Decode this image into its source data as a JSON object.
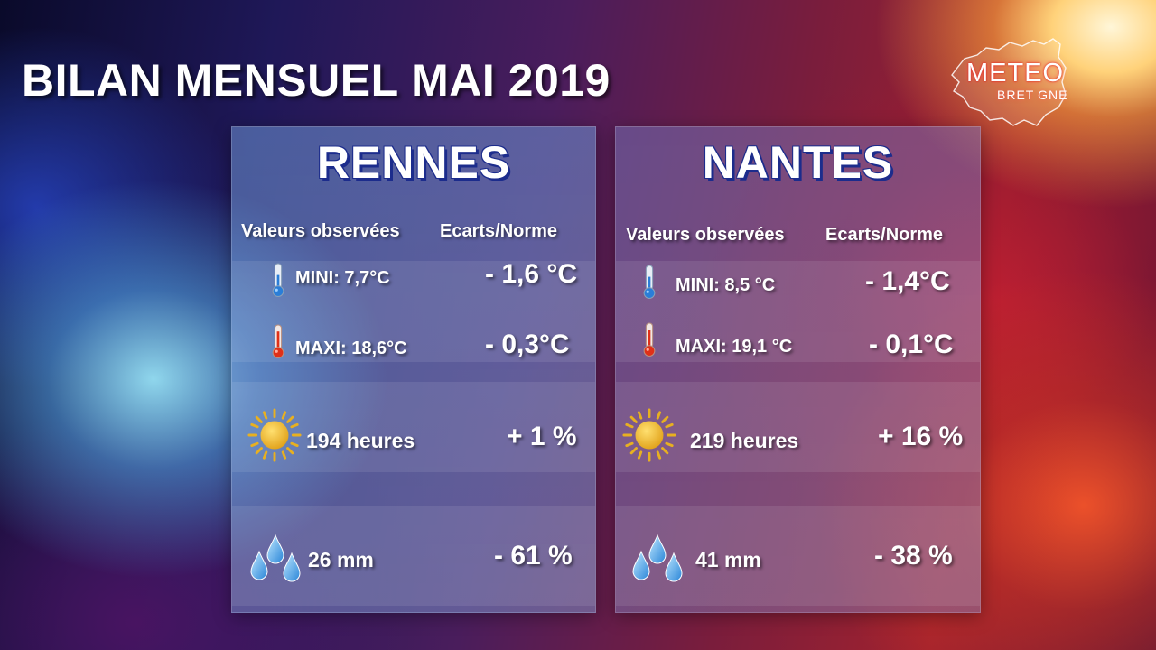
{
  "title": "BILAN MENSUEL MAI 2019",
  "logo": {
    "line1": "METEO",
    "line2": "BRET GNE"
  },
  "headers": {
    "observed": "Valeurs observées",
    "deviation": "Ecarts/Norme"
  },
  "cities": [
    {
      "name": "RENNES",
      "mini_label": "MINI: 7,7°C",
      "mini_deviation": "- 1,6 °C",
      "maxi_label": "MAXI: 18,6°C",
      "maxi_deviation": "- 0,3°C",
      "sun_label": "194 heures",
      "sun_deviation": "+ 1 %",
      "rain_label": "26 mm",
      "rain_deviation": "- 61 %"
    },
    {
      "name": "NANTES",
      "mini_label": "MINI: 8,5 °C",
      "mini_deviation": "- 1,4°C",
      "maxi_label": "MAXI: 19,1 °C",
      "maxi_deviation": "- 0,1°C",
      "sun_label": "219 heures",
      "sun_deviation": "+ 16 %",
      "rain_label": "41 mm",
      "rain_deviation": "- 38 %"
    }
  ],
  "colors": {
    "city_outline": "#1c2c8c",
    "sun": "#e8b020",
    "drop": "#4aa8e8",
    "thermo_cold": "#2a7ed8",
    "thermo_hot": "#e03018"
  }
}
